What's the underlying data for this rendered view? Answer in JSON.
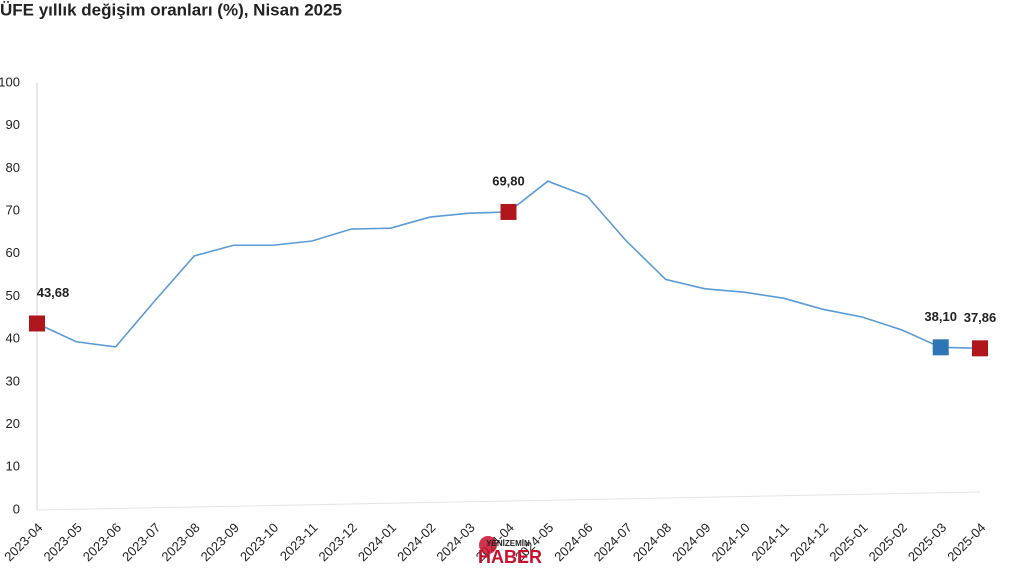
{
  "chart_data": {
    "type": "line",
    "title": "ÜFE yıllık değişim oranları (%), Nisan 2025",
    "categories": [
      "2023-04",
      "2023-05",
      "2023-06",
      "2023-07",
      "2023-08",
      "2023-09",
      "2023-10",
      "2023-11",
      "2023-12",
      "2024-01",
      "2024-02",
      "2024-03",
      "2024-04",
      "2024-05",
      "2024-06",
      "2024-07",
      "2024-08",
      "2024-09",
      "2024-10",
      "2024-11",
      "2024-12",
      "2025-01",
      "2025-02",
      "2025-03",
      "2025-04"
    ],
    "series": [
      {
        "color": "#5b9bd5",
        "values": [
          43.68,
          39.4,
          38.2,
          49,
          59.5,
          62,
          62,
          63,
          65.8,
          66,
          68.6,
          69.5,
          69.8,
          77,
          73.5,
          63,
          54,
          51.8,
          51,
          49.6,
          47,
          45.2,
          42.2,
          38.1,
          37.86
        ],
        "value_labels": [
          "43,68",
          null,
          null,
          null,
          null,
          null,
          null,
          null,
          null,
          null,
          null,
          null,
          "69,80",
          null,
          null,
          null,
          null,
          null,
          null,
          null,
          null,
          null,
          null,
          "38,10",
          "37,86"
        ],
        "marker_colors": [
          "#b0161b",
          null,
          null,
          null,
          null,
          null,
          null,
          null,
          null,
          null,
          null,
          null,
          "#b0161b",
          null,
          null,
          null,
          null,
          null,
          null,
          null,
          null,
          null,
          null,
          "#2e75b6",
          "#b0161b"
        ]
      }
    ],
    "ylim": [
      0,
      100
    ],
    "yticks": [
      0,
      10,
      20,
      30,
      40,
      50,
      60,
      70,
      80,
      90,
      100
    ],
    "grid": false,
    "watermark": [
      "YENİZEMİN",
      "HABER"
    ]
  }
}
